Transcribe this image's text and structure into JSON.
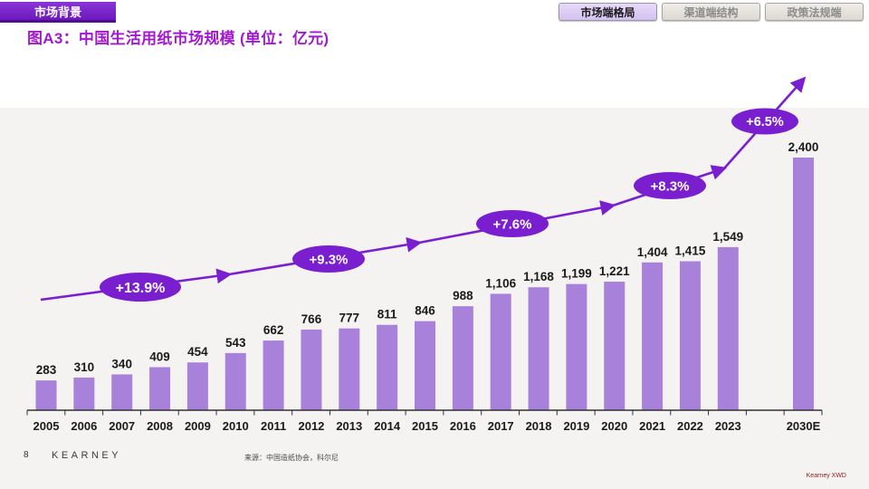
{
  "header": {
    "section_badge": "市场背景",
    "title": "图A3：中国生活用纸市场规模 (单位：亿元)",
    "tabs": [
      {
        "label": "市场端格局",
        "active": true
      },
      {
        "label": "渠道端结构",
        "active": false
      },
      {
        "label": "政策法规端",
        "active": false
      }
    ]
  },
  "footer": {
    "page_number": "8",
    "logo": "KEARNEY",
    "source": "来源：中国造纸协会，科尔尼",
    "watermark": "Kearney XWD"
  },
  "colors": {
    "bar": "#A881DB",
    "accent_purple": "#7A1FD0",
    "title_purple": "#A219CF",
    "badge_bg": "#7B22CC",
    "chart_bg": "#F5F3F1",
    "label_text": "#1A1A1A"
  },
  "chart_data": {
    "type": "bar",
    "title": "图A3：中国生活用纸市场规模 (单位：亿元)",
    "unit": "亿元",
    "categories": [
      "2005",
      "2006",
      "2007",
      "2008",
      "2009",
      "2010",
      "2011",
      "2012",
      "2013",
      "2014",
      "2015",
      "2016",
      "2017",
      "2018",
      "2019",
      "2020",
      "2021",
      "2022",
      "2023",
      "2030E"
    ],
    "values": [
      283,
      310,
      340,
      409,
      454,
      543,
      662,
      766,
      777,
      811,
      846,
      988,
      1106,
      1168,
      1199,
      1221,
      1404,
      1415,
      1549,
      2400
    ],
    "value_labels": [
      "283",
      "310",
      "340",
      "409",
      "454",
      "543",
      "662",
      "766",
      "777",
      "811",
      "846",
      "988",
      "1,106",
      "1,168",
      "1,199",
      "1,221",
      "1,404",
      "1,415",
      "1,549",
      "2,400"
    ],
    "growth_annotations": [
      "+13.9%",
      "+9.3%",
      "+7.6%",
      "+8.3%",
      "+6.5%"
    ],
    "ylim": [
      0,
      2400
    ],
    "grid": false,
    "legend": "none",
    "notes": "Trend arrow line with CAGR ellipses overlaid; 2030E is a projection separated by a gap after 2023"
  }
}
